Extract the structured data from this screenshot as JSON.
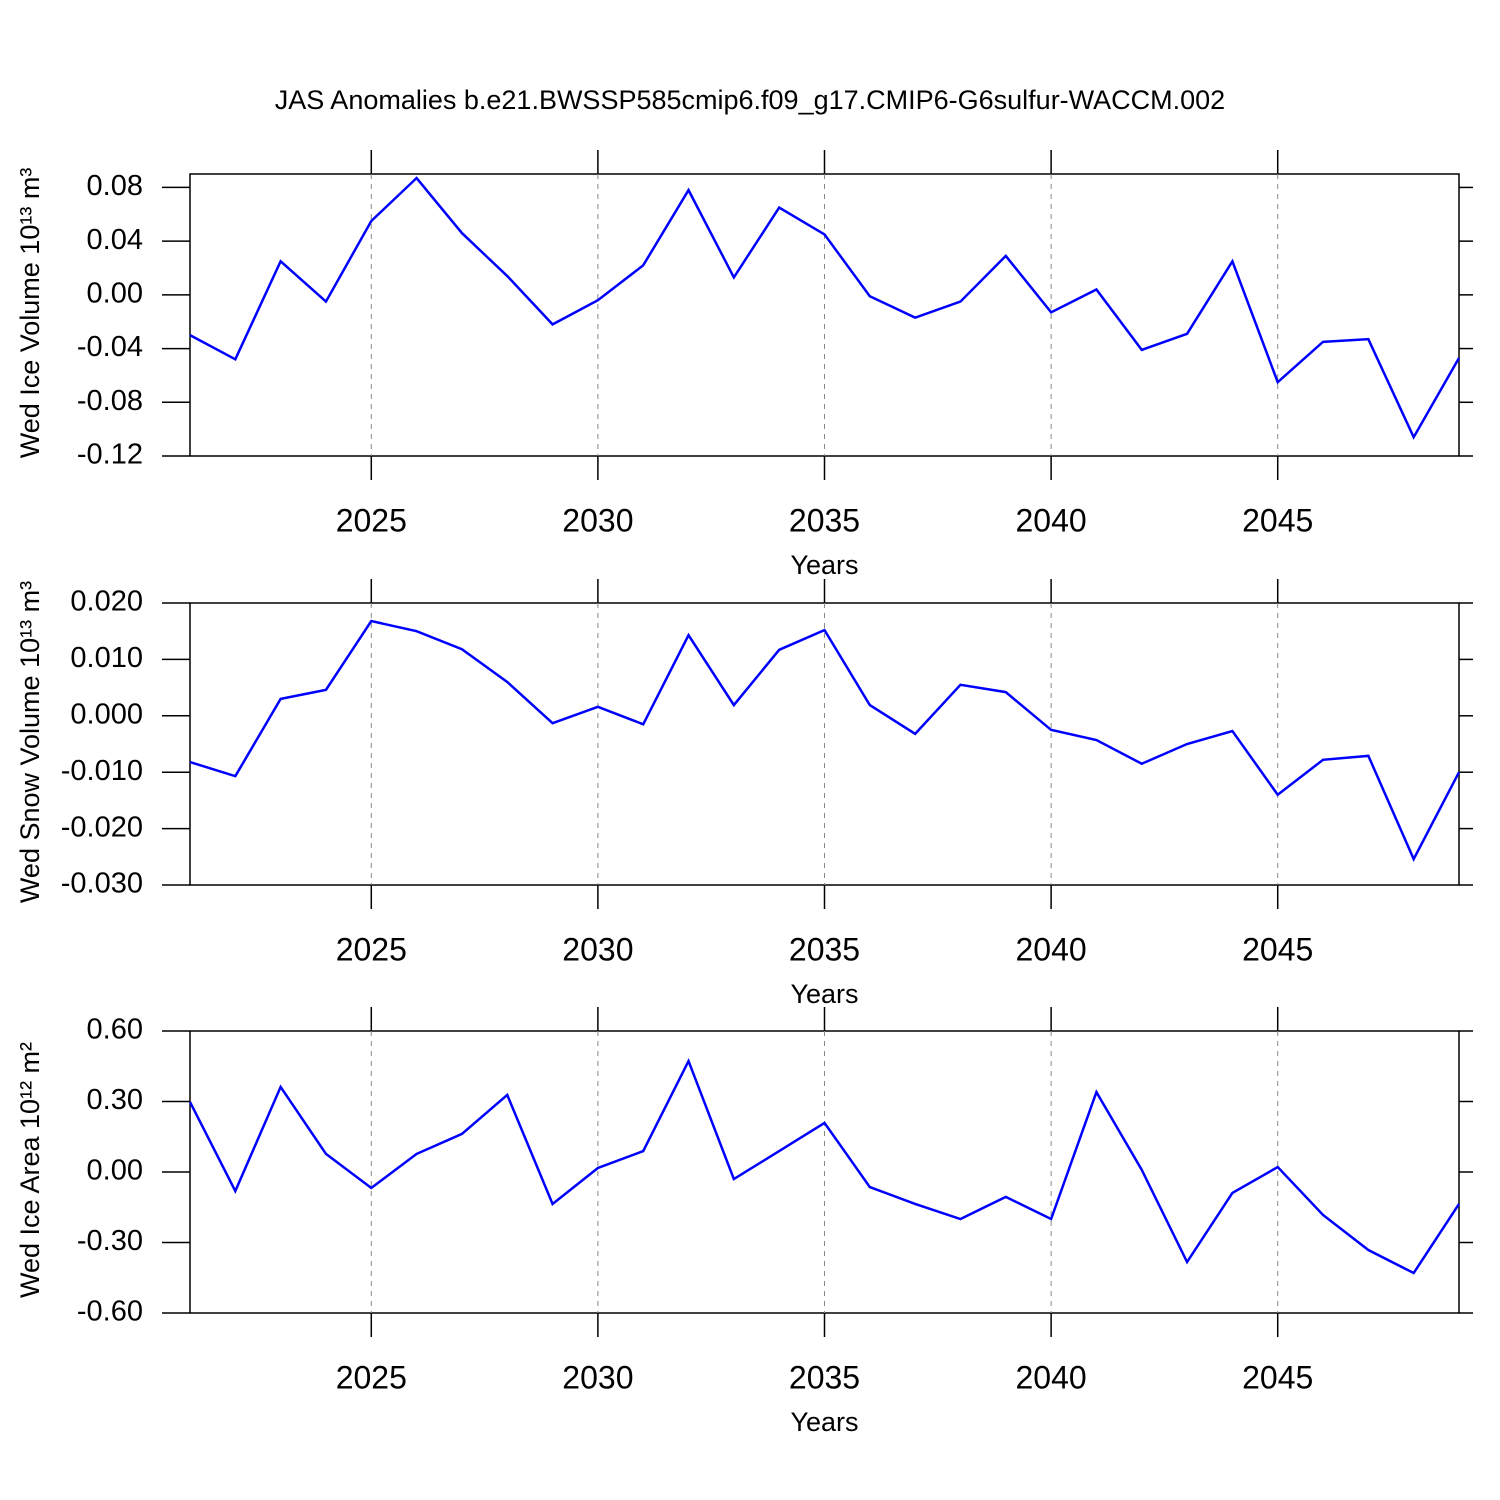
{
  "chart_data": [
    {
      "type": "line",
      "title": "JAS Anomalies b.e21.BWSSP585cmip6.f09_g17.CMIP6-G6sulfur-WACCM.002",
      "xlabel": "Years",
      "ylabel": "Wed Ice Volume 10¹³ m³",
      "x": [
        2021,
        2022,
        2023,
        2024,
        2025,
        2026,
        2027,
        2028,
        2029,
        2030,
        2031,
        2032,
        2033,
        2034,
        2035,
        2036,
        2037,
        2038,
        2039,
        2040,
        2041,
        2042,
        2043,
        2044,
        2045,
        2046,
        2047,
        2048,
        2049
      ],
      "values": [
        -0.03,
        -0.048,
        0.025,
        -0.005,
        0.055,
        0.087,
        0.046,
        0.014,
        -0.022,
        -0.004,
        0.022,
        0.078,
        0.013,
        0.065,
        0.045,
        -0.001,
        -0.017,
        -0.005,
        0.029,
        -0.013,
        0.004,
        -0.041,
        -0.029,
        0.025,
        -0.065,
        -0.035,
        -0.033,
        -0.106,
        -0.047
      ],
      "color": "#0000ff",
      "xlim": [
        2021,
        2049
      ],
      "xticks": [
        2025,
        2030,
        2035,
        2040,
        2045
      ],
      "grid": true,
      "ylim": [
        -0.12,
        0.09
      ],
      "yticks": [
        -0.12,
        -0.08,
        -0.04,
        {
          "value": 0,
          "label": "0.00"
        },
        0.04,
        0.08
      ]
    },
    {
      "type": "line",
      "xlabel": "Years",
      "ylabel": "Wed Snow Volume 10¹³ m³",
      "x": [
        2021,
        2022,
        2023,
        2024,
        2025,
        2026,
        2027,
        2028,
        2029,
        2030,
        2031,
        2032,
        2033,
        2034,
        2035,
        2036,
        2037,
        2038,
        2039,
        2040,
        2041,
        2042,
        2043,
        2044,
        2045,
        2046,
        2047,
        2048,
        2049
      ],
      "values": [
        -0.0082,
        -0.0107,
        0.003,
        0.0046,
        0.0168,
        0.015,
        0.0118,
        0.006,
        -0.0013,
        0.0016,
        -0.0015,
        0.0143,
        0.0019,
        0.0117,
        0.0152,
        0.0019,
        -0.0032,
        0.0055,
        0.0042,
        -0.0025,
        -0.0043,
        -0.0085,
        -0.005,
        -0.0027,
        -0.014,
        -0.0078,
        -0.0071,
        -0.0254,
        -0.01
      ],
      "color": "#0000ff",
      "xlim": [
        2021,
        2049
      ],
      "xticks": [
        2025,
        2030,
        2035,
        2040,
        2045
      ],
      "grid": true,
      "ylim": [
        -0.03,
        0.02
      ],
      "yticks": [
        {
          "value": -0.03,
          "label": "-0.030"
        },
        {
          "value": -0.02,
          "label": "-0.020"
        },
        {
          "value": -0.01,
          "label": "-0.010"
        },
        {
          "value": 0,
          "label": "0.000"
        },
        {
          "value": 0.01,
          "label": "0.010"
        },
        {
          "value": 0.02,
          "label": "0.020"
        }
      ]
    },
    {
      "type": "line",
      "xlabel": "Years",
      "ylabel": "Wed Ice Area 10¹² m²",
      "x": [
        2021,
        2022,
        2023,
        2024,
        2025,
        2026,
        2027,
        2028,
        2029,
        2030,
        2031,
        2032,
        2033,
        2034,
        2035,
        2036,
        2037,
        2038,
        2039,
        2040,
        2041,
        2042,
        2043,
        2044,
        2045,
        2046,
        2047,
        2048,
        2049
      ],
      "values": [
        0.298,
        -0.081,
        0.362,
        0.077,
        -0.068,
        0.077,
        0.162,
        0.328,
        -0.136,
        0.017,
        0.089,
        0.472,
        -0.03,
        0.089,
        0.209,
        -0.064,
        -0.136,
        -0.2,
        -0.106,
        -0.2,
        0.34,
        0.009,
        -0.383,
        -0.089,
        0.021,
        -0.183,
        -0.332,
        -0.43,
        -0.136
      ],
      "color": "#0000ff",
      "xlim": [
        2021,
        2049
      ],
      "xticks": [
        2025,
        2030,
        2035,
        2040,
        2045
      ],
      "grid": true,
      "ylim": [
        -0.6,
        0.6
      ],
      "yticks": [
        {
          "value": -0.6,
          "label": "-0.60"
        },
        {
          "value": -0.3,
          "label": "-0.30"
        },
        {
          "value": 0,
          "label": "0.00"
        },
        {
          "value": 0.3,
          "label": "0.30"
        },
        {
          "value": 0.6,
          "label": "0.60"
        }
      ]
    }
  ]
}
